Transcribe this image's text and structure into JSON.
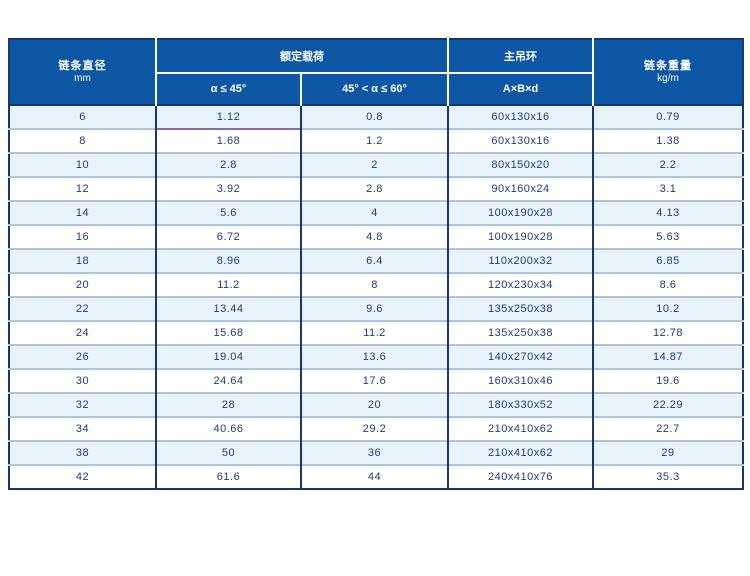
{
  "table": {
    "header": {
      "col_diameter": {
        "line1": "链条直径",
        "line2": "mm"
      },
      "group_rated_load": "额定载荷",
      "sub_alpha_le_45": "α ≤ 45°",
      "sub_45_lt_alpha_le_60": "45° < α ≤ 60°",
      "group_main_ring": "主吊环",
      "sub_ring_dims": "A×B×d",
      "col_weight": {
        "line1": "链条重量",
        "line2": "kg/m"
      }
    },
    "columns": [
      "chain_diameter_mm",
      "rated_load_alpha_le_45",
      "rated_load_45_to_60",
      "main_ring_AxBxd",
      "chain_weight_kg_per_m"
    ],
    "rows": [
      [
        "6",
        "1.12",
        "0.8",
        "60x130x16",
        "0.79"
      ],
      [
        "8",
        "1.68",
        "1.2",
        "60x130x16",
        "1.38"
      ],
      [
        "10",
        "2.8",
        "2",
        "80x150x20",
        "2.2"
      ],
      [
        "12",
        "3.92",
        "2.8",
        "90x160x24",
        "3.1"
      ],
      [
        "14",
        "5.6",
        "4",
        "100x190x28",
        "4.13"
      ],
      [
        "16",
        "6.72",
        "4.8",
        "100x190x28",
        "5.63"
      ],
      [
        "18",
        "8.96",
        "6.4",
        "110x200x32",
        "6.85"
      ],
      [
        "20",
        "11.2",
        "8",
        "120x230x34",
        "8.6"
      ],
      [
        "22",
        "13.44",
        "9.6",
        "135x250x38",
        "10.2"
      ],
      [
        "24",
        "15.68",
        "11.2",
        "135x250x38",
        "12.78"
      ],
      [
        "26",
        "19.04",
        "13.6",
        "140x270x42",
        "14.87"
      ],
      [
        "30",
        "24.64",
        "17.6",
        "160x310x46",
        "19.6"
      ],
      [
        "32",
        "28",
        "20",
        "180x330x52",
        "22.29"
      ],
      [
        "34",
        "40.66",
        "29.2",
        "210x410x62",
        "22.7"
      ],
      [
        "38",
        "50",
        "36",
        "210x410x62",
        "29"
      ],
      [
        "42",
        "61.6",
        "44",
        "240x410x76",
        "35.3"
      ]
    ],
    "colors": {
      "header_blue": "#0e57a5",
      "row_alt_blue": "#e8f3fb",
      "border_navy": "#16386e",
      "row_separator": "#aac5de",
      "body_text": "#1e3c78",
      "accent_separator": "#8d6b9d"
    }
  }
}
